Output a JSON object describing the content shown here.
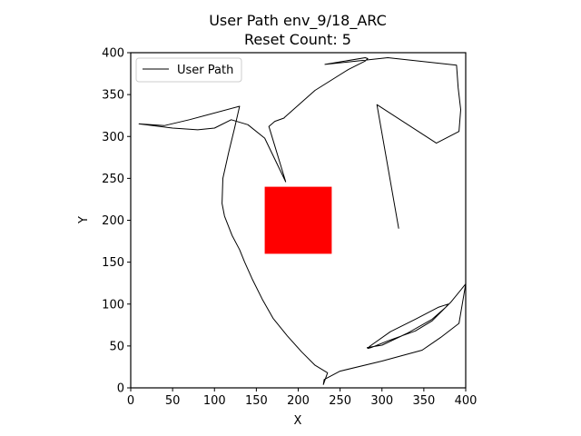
{
  "chart_data": {
    "type": "line",
    "title": "User Path env_9/18_ARC",
    "subtitle": "Reset Count: 5",
    "xlabel": "X",
    "ylabel": "Y",
    "xlim": [
      0,
      400
    ],
    "ylim": [
      0,
      400
    ],
    "xticks": [
      "0",
      "50",
      "100",
      "150",
      "200",
      "250",
      "300",
      "350",
      "400"
    ],
    "yticks": [
      "0",
      "50",
      "100",
      "150",
      "200",
      "250",
      "300",
      "350",
      "400"
    ],
    "grid": false,
    "legend": {
      "position": "top-left",
      "entries": [
        "User Path"
      ]
    },
    "colors": {
      "path": "#000000",
      "obstacle": "#ff0000"
    },
    "obstacle": {
      "x": [
        160,
        240
      ],
      "y": [
        160,
        240
      ]
    },
    "series": [
      {
        "name": "User Path",
        "x": [
          320,
          294,
          365,
          392,
          394,
          391,
          389,
          307,
          232,
          280,
          283,
          280,
          260,
          220,
          184,
          183,
          172,
          165,
          185,
          160,
          140,
          120,
          100,
          80,
          50,
          10,
          40,
          70,
          130,
          124,
          117,
          110,
          109,
          112,
          121,
          130,
          136,
          145,
          157,
          170,
          187,
          204,
          220,
          235,
          230,
          231,
          250,
          300,
          348,
          370,
          392,
          400,
          382,
          360,
          340,
          307,
          287,
          283,
          286,
          310,
          340,
          367,
          379,
          376,
          360,
          330,
          300,
          282
        ],
        "y": [
          190,
          338,
          292,
          306,
          332,
          358,
          385,
          394,
          386,
          394,
          393,
          390,
          380,
          355,
          323,
          322,
          318,
          312,
          246,
          298,
          314,
          320,
          310,
          308,
          310,
          315,
          313,
          320,
          336,
          310,
          281,
          250,
          220,
          205,
          182,
          165,
          150,
          130,
          106,
          83,
          62,
          43,
          27,
          18,
          4,
          10,
          20,
          32,
          45,
          60,
          77,
          124,
          102,
          80,
          68,
          56,
          48,
          47,
          50,
          67,
          82,
          96,
          100,
          96,
          82,
          65,
          51,
          48
        ]
      }
    ]
  }
}
